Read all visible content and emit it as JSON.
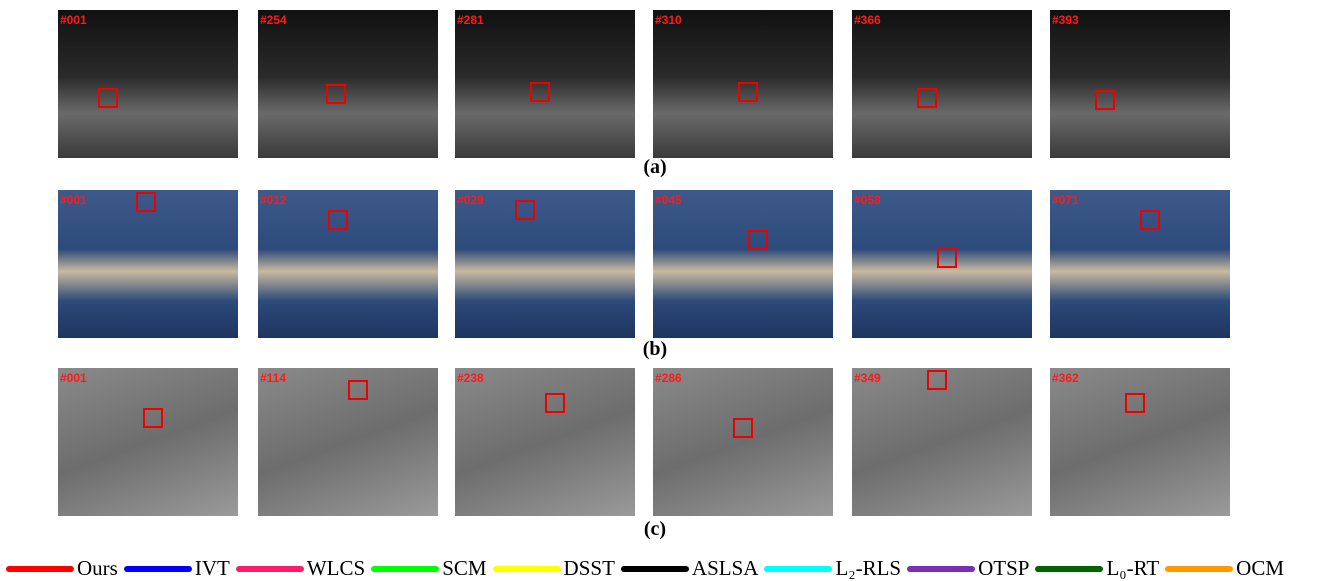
{
  "rows": [
    {
      "label": "(a)",
      "frames": [
        "#001",
        "#254",
        "#281",
        "#310",
        "#366",
        "#393"
      ]
    },
    {
      "label": "(b)",
      "frames": [
        "#001",
        "#012",
        "#029",
        "#045",
        "#058",
        "#071"
      ]
    },
    {
      "label": "(c)",
      "frames": [
        "#001",
        "#114",
        "#238",
        "#286",
        "#349",
        "#362"
      ]
    }
  ],
  "legend": [
    {
      "name": "Ours",
      "color": "#ff0000"
    },
    {
      "name": "IVT",
      "color": "#0000ff"
    },
    {
      "name": "WLCS",
      "color": "#ff1a6e"
    },
    {
      "name": "SCM",
      "color": "#00ff00"
    },
    {
      "name": "DSST",
      "color": "#ffff00"
    },
    {
      "name": "ASLSA",
      "color": "#000000"
    },
    {
      "name": "L₂-RLS",
      "color": "#00ffff"
    },
    {
      "name": "OTSP",
      "color": "#7a2fb5"
    },
    {
      "name": "L₀-RT",
      "color": "#006400"
    },
    {
      "name": "OCM",
      "color": "#ff9900"
    }
  ]
}
